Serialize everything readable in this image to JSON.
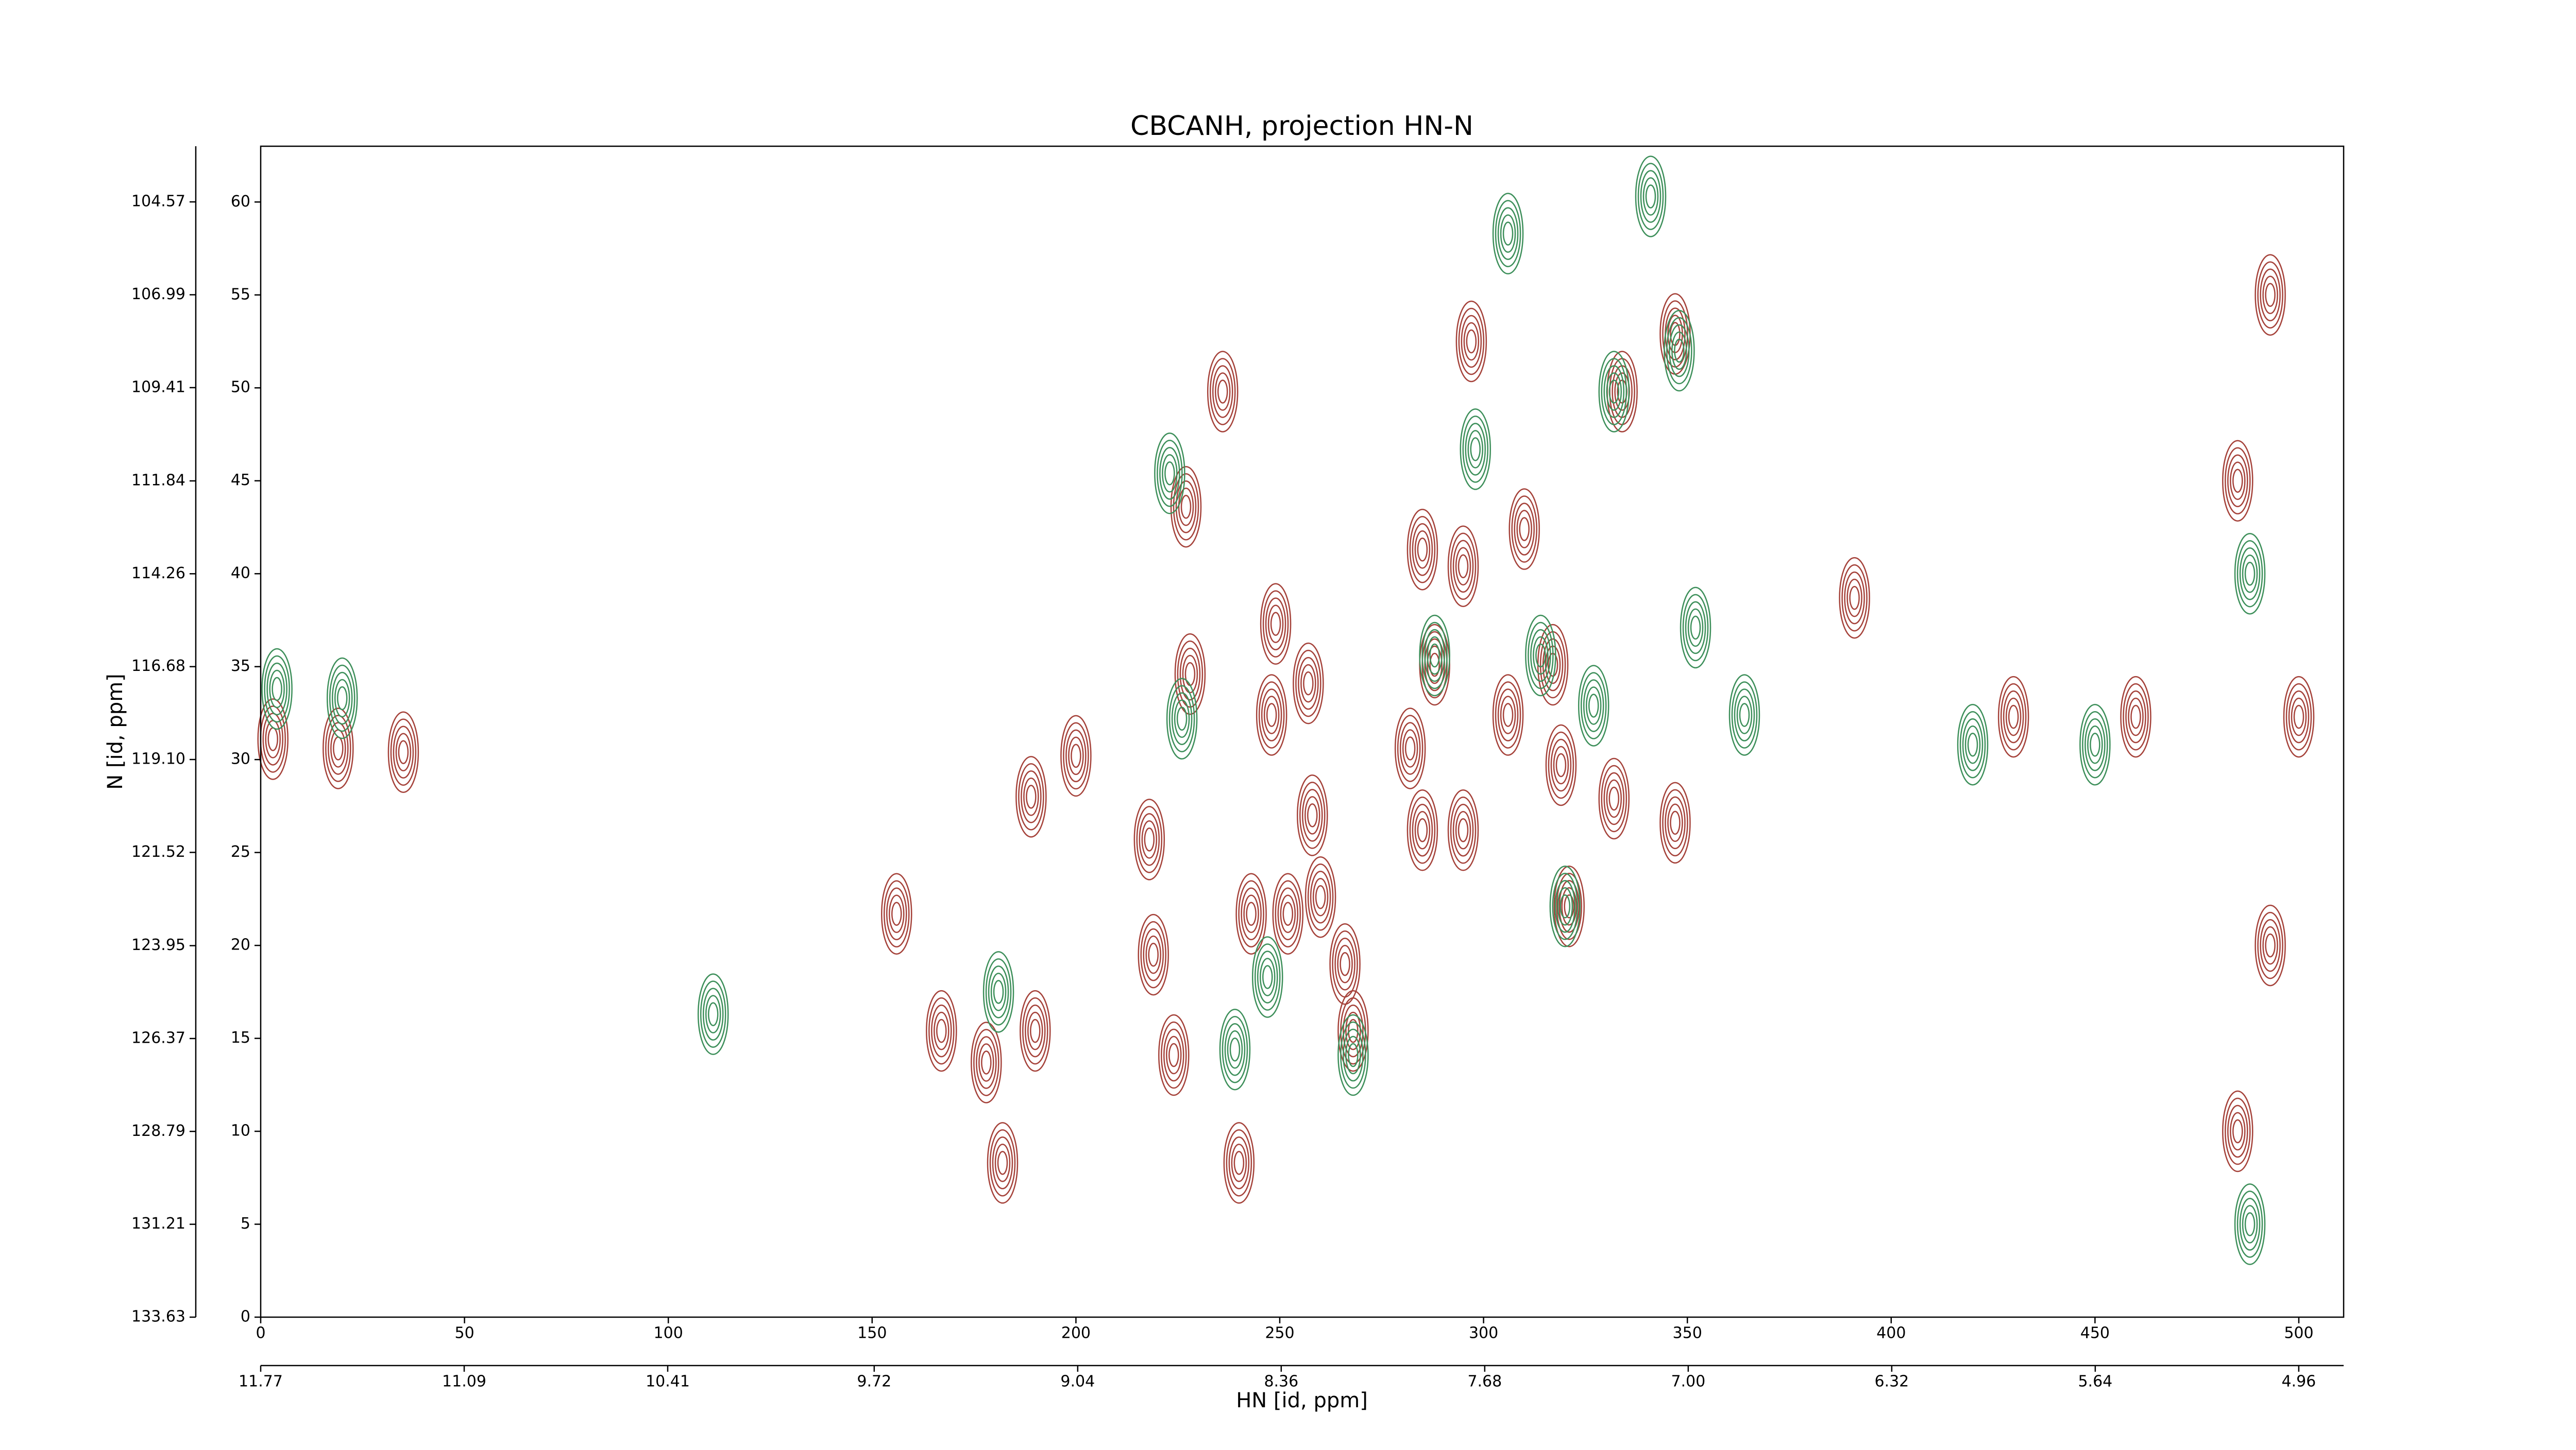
{
  "chart_data": {
    "type": "contour",
    "title": "CBCANH, projection HN-N",
    "x_label": "HN [id, ppm]",
    "y_label": "N [id, ppm]",
    "xlim": [
      0,
      511
    ],
    "xticks": [
      0,
      50,
      100,
      150,
      200,
      250,
      300,
      350,
      400,
      450,
      500
    ],
    "ylim": [
      0,
      63
    ],
    "yticks": [
      0,
      5,
      10,
      15,
      20,
      25,
      30,
      35,
      40,
      45,
      50,
      55,
      60
    ],
    "x2lim": [
      11.77,
      4.81
    ],
    "x2ticks": [
      11.77,
      11.09,
      10.41,
      9.72,
      9.04,
      8.36,
      7.68,
      {
        "value": 7,
        "label": "7.00"
      },
      6.32,
      5.64,
      4.96
    ],
    "y2lim": [
      133.63,
      103.12
    ],
    "y2ticks": [
      133.63,
      131.21,
      128.79,
      126.37,
      123.95,
      121.52,
      {
        "value": 119.1,
        "label": "119.10"
      },
      116.68,
      114.26,
      111.84,
      109.41,
      106.99,
      104.57
    ],
    "series": [
      {
        "color": "#a5423a",
        "x": [
          3,
          19,
          35,
          200,
          189,
          156,
          167,
          178,
          182,
          190,
          218,
          219,
          224,
          227,
          236,
          228,
          240,
          249,
          248,
          257,
          258,
          260,
          266,
          268,
          282,
          285,
          295,
          297,
          295,
          285,
          288,
          306,
          317,
          319,
          321,
          332,
          334,
          347,
          347,
          391,
          310,
          243,
          252,
          430,
          460,
          500,
          485,
          493,
          485,
          493
        ],
        "y": [
          31.1,
          30.6,
          30.4,
          30.2,
          28,
          21.7,
          15.4,
          13.7,
          8.3,
          15.4,
          25.7,
          19.5,
          14.1,
          43.6,
          49.8,
          34.6,
          8.3,
          37.3,
          32.4,
          34.1,
          27,
          22.6,
          19,
          15.4,
          30.6,
          26.2,
          26.2,
          52.5,
          40.4,
          41.3,
          35.1,
          32.4,
          35.1,
          29.7,
          22.1,
          27.9,
          49.8,
          52.9,
          26.6,
          38.7,
          42.4,
          21.7,
          21.7,
          32.3,
          32.3,
          32.3,
          10,
          55,
          45,
          20
        ]
      },
      {
        "color": "#3d8f5a",
        "x": [
          4,
          20,
          111,
          181,
          223,
          226,
          239,
          247,
          268,
          288,
          298,
          341,
          348,
          332,
          314,
          327,
          352,
          320,
          306,
          364,
          420,
          450,
          488,
          488
        ],
        "y": [
          33.8,
          33.3,
          16.3,
          17.5,
          45.4,
          32.2,
          14.4,
          18.3,
          14.1,
          35.6,
          46.7,
          60.3,
          52,
          49.8,
          35.6,
          32.9,
          37.1,
          22.1,
          58.3,
          32.4,
          30.8,
          30.8,
          40,
          5
        ]
      }
    ]
  }
}
